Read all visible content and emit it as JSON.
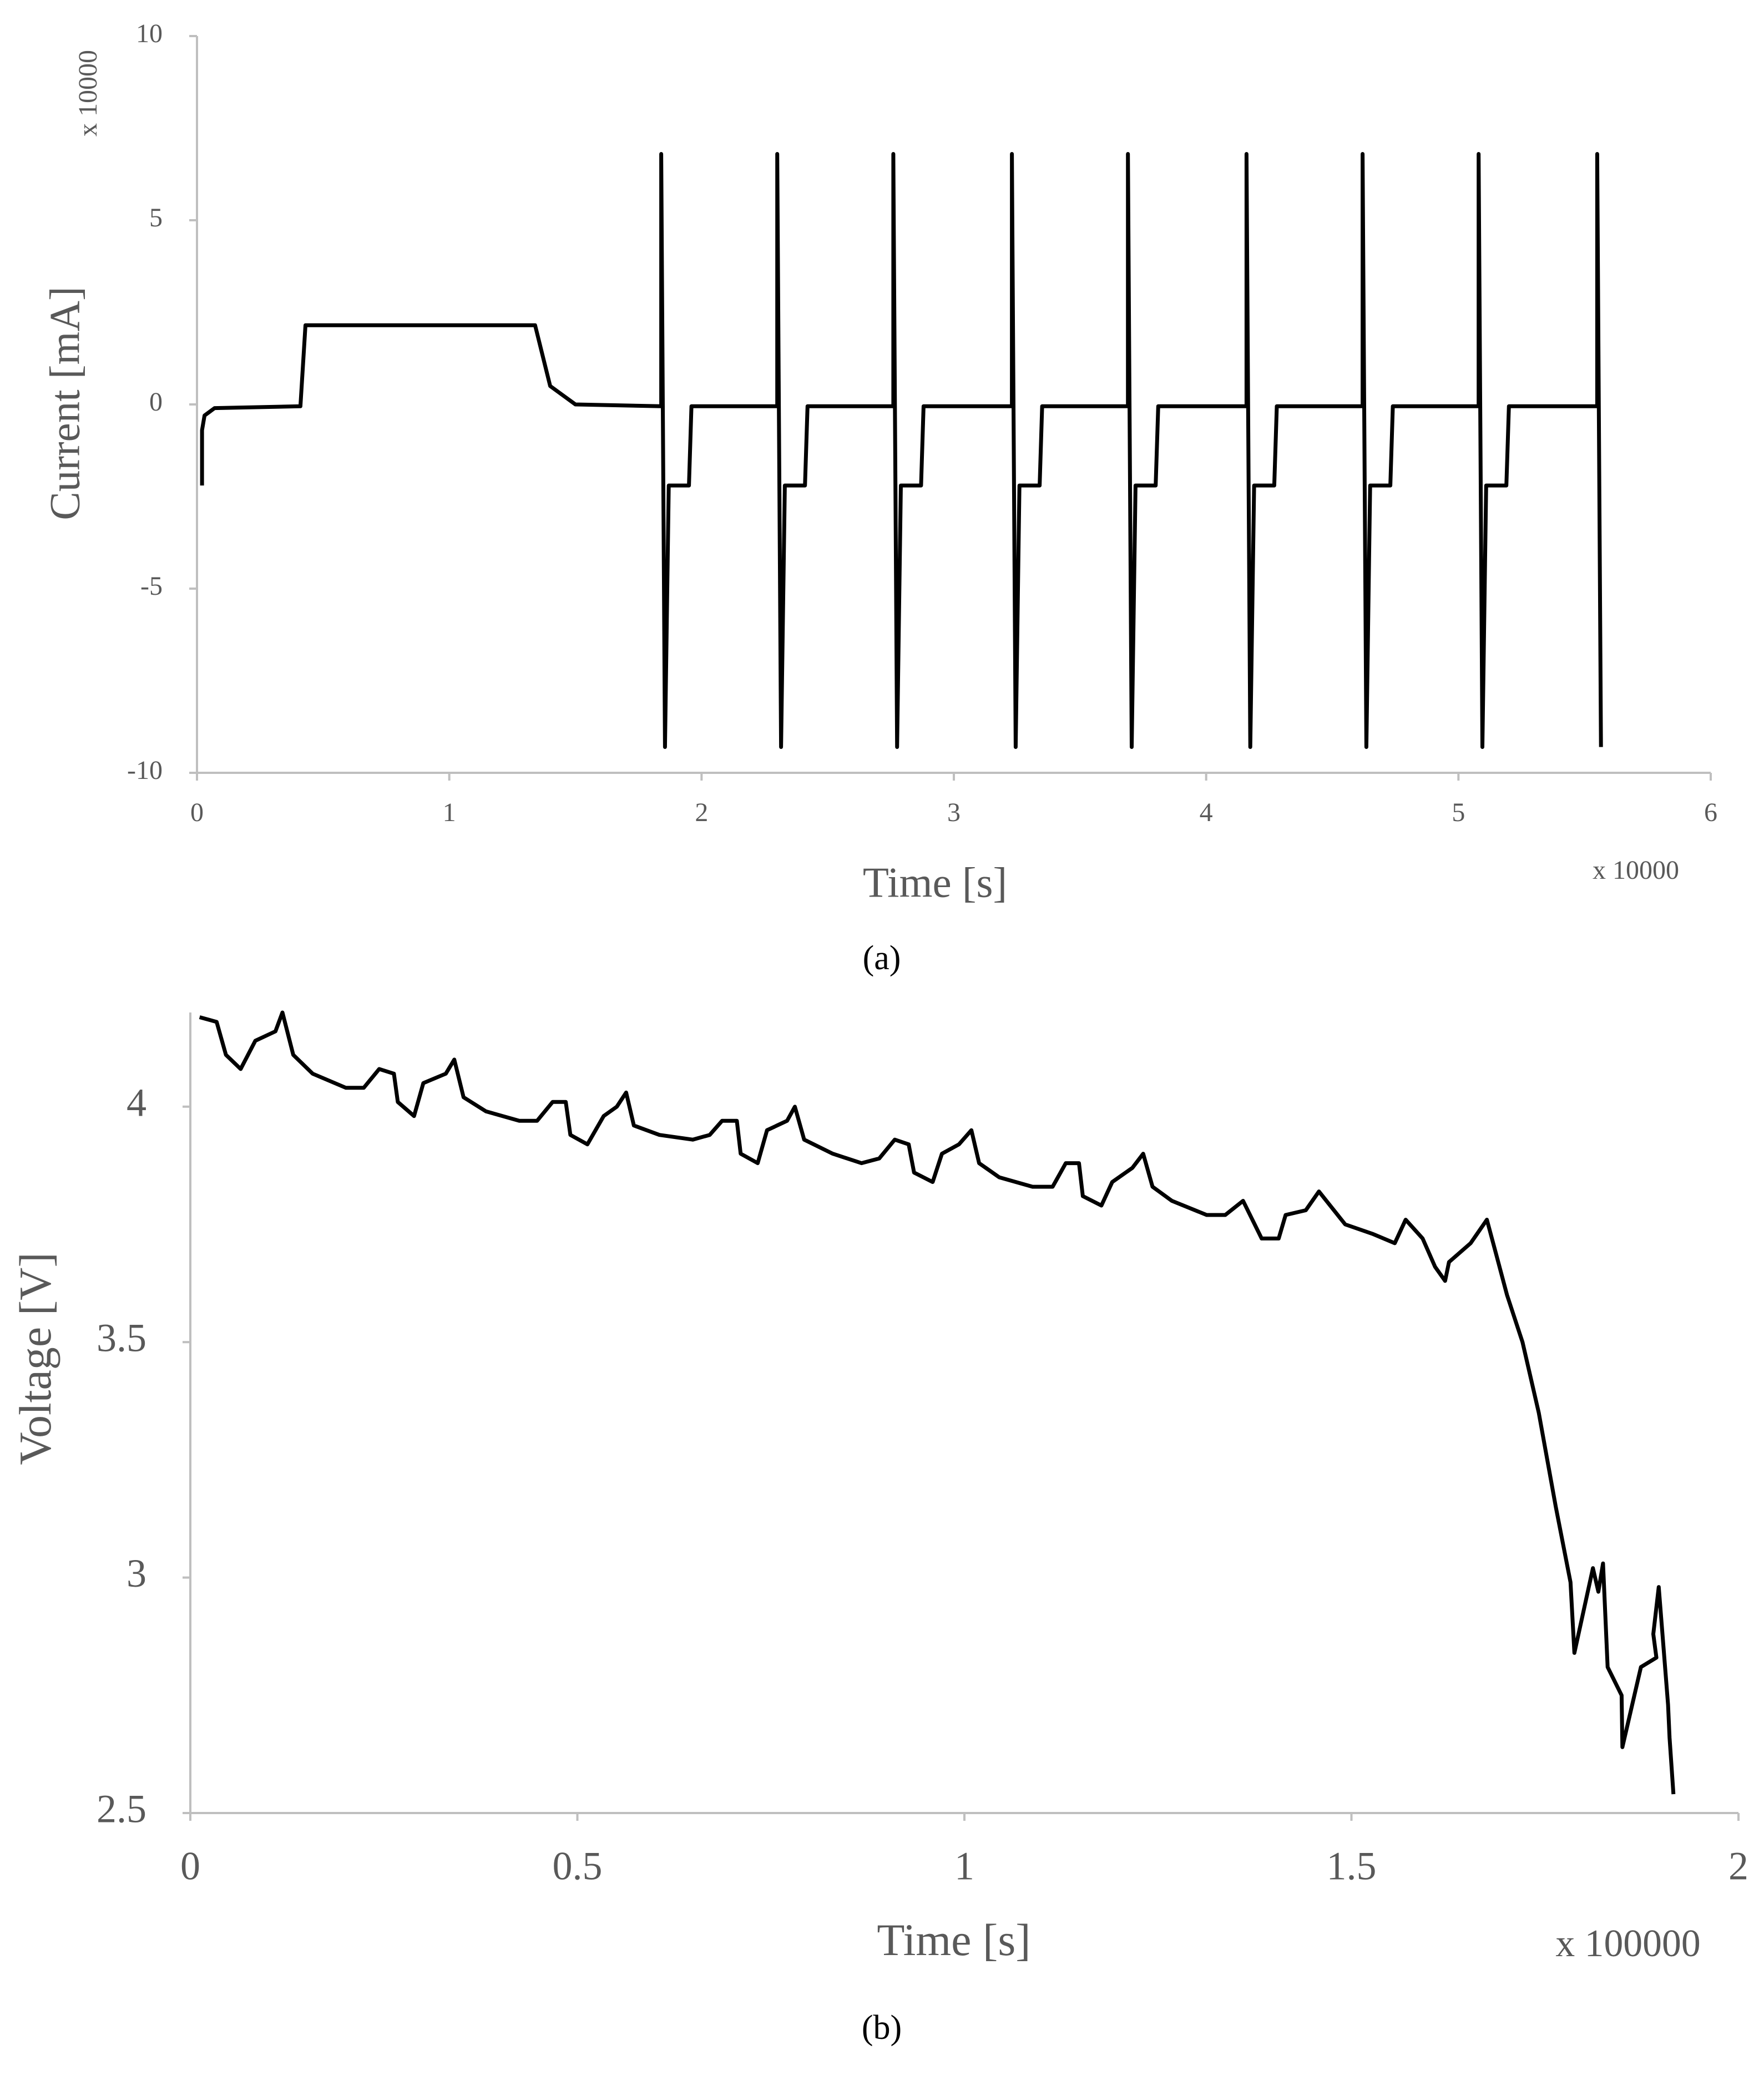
{
  "chart_data": [
    {
      "type": "line",
      "caption": "(a)",
      "x_label": "Time [s]",
      "y_label": "Current [mA]",
      "x_multiplier_label": "x 10000",
      "y_multiplier_label": "x 10000",
      "xlim": [
        0,
        6
      ],
      "xticks": [
        0,
        1,
        2,
        3,
        4,
        5,
        6
      ],
      "ylim": [
        -10,
        10
      ],
      "yticks": [
        -10,
        -5,
        0,
        5,
        10
      ],
      "grid": false,
      "series": [
        {
          "color": "#000000",
          "x": [
            0.02,
            0.02,
            0.03,
            0.07,
            0.41,
            0.43,
            1.34,
            1.4,
            1.5,
            1.84,
            1.84,
            1.855,
            1.87,
            1.95,
            1.96,
            2.3,
            2.3,
            2.315,
            2.33,
            2.41,
            2.42,
            2.76,
            2.76,
            2.775,
            2.79,
            2.87,
            2.88,
            3.23,
            3.23,
            3.245,
            3.26,
            3.34,
            3.35,
            3.69,
            3.69,
            3.705,
            3.72,
            3.8,
            3.81,
            4.16,
            4.16,
            4.175,
            4.19,
            4.27,
            4.28,
            4.62,
            4.62,
            4.635,
            4.65,
            4.73,
            4.74,
            5.08,
            5.08,
            5.095,
            5.11,
            5.19,
            5.2,
            5.55,
            5.55,
            5.565
          ],
          "values": [
            -2.2,
            -0.7,
            -0.3,
            -0.1,
            -0.05,
            2.15,
            2.15,
            0.5,
            0,
            -0.05,
            6.8,
            -9.3,
            -2.2,
            -2.2,
            -0.05,
            -0.05,
            6.8,
            -9.3,
            -2.2,
            -2.2,
            -0.05,
            -0.05,
            6.8,
            -9.3,
            -2.2,
            -2.2,
            -0.05,
            -0.05,
            6.8,
            -9.3,
            -2.2,
            -2.2,
            -0.05,
            -0.05,
            6.8,
            -9.3,
            -2.2,
            -2.2,
            -0.05,
            -0.05,
            6.8,
            -9.3,
            -2.2,
            -2.2,
            -0.05,
            -0.05,
            6.8,
            -9.3,
            -2.2,
            -2.2,
            -0.05,
            -0.05,
            6.8,
            -9.3,
            -2.2,
            -2.2,
            -0.05,
            -0.05,
            6.8,
            -9.3
          ]
        }
      ]
    },
    {
      "type": "line",
      "caption": "(b)",
      "x_label": "Time [s]",
      "y_label": "Voltage [V]",
      "x_multiplier_label": "x 100000",
      "xlim": [
        0,
        2
      ],
      "xticks": [
        0,
        0.5,
        1,
        1.5,
        2
      ],
      "ylim": [
        2.5,
        4.2
      ],
      "yticks": [
        2.5,
        3,
        3.5,
        4
      ],
      "grid": false,
      "series": [
        {
          "color": "#000000",
          "x": [
            0.012,
            0.034,
            0.046,
            0.065,
            0.084,
            0.11,
            0.119,
            0.133,
            0.158,
            0.201,
            0.224,
            0.244,
            0.263,
            0.268,
            0.289,
            0.301,
            0.33,
            0.341,
            0.353,
            0.382,
            0.425,
            0.448,
            0.468,
            0.485,
            0.491,
            0.513,
            0.534,
            0.551,
            0.563,
            0.573,
            0.606,
            0.649,
            0.671,
            0.687,
            0.706,
            0.711,
            0.733,
            0.745,
            0.771,
            0.781,
            0.793,
            0.83,
            0.867,
            0.89,
            0.91,
            0.928,
            0.935,
            0.959,
            0.971,
            0.993,
            1.009,
            1.019,
            1.045,
            1.088,
            1.114,
            1.131,
            1.148,
            1.153,
            1.177,
            1.191,
            1.217,
            1.231,
            1.243,
            1.268,
            1.313,
            1.337,
            1.36,
            1.384,
            1.406,
            1.415,
            1.441,
            1.458,
            1.492,
            1.527,
            1.556,
            1.57,
            1.592,
            1.608,
            1.621,
            1.626,
            1.654,
            1.675,
            1.688,
            1.701,
            1.721,
            1.742,
            1.764,
            1.783,
            1.788,
            1.812,
            1.819,
            1.825,
            1.831,
            1.849,
            1.85,
            1.874,
            1.894,
            1.89,
            1.897,
            1.909,
            1.911,
            1.916
          ],
          "values": [
            4.19,
            4.18,
            4.11,
            4.08,
            4.14,
            4.16,
            4.2,
            4.11,
            4.07,
            4.04,
            4.04,
            4.08,
            4.07,
            4.01,
            3.98,
            4.05,
            4.07,
            4.1,
            4.02,
            3.99,
            3.97,
            3.97,
            4.01,
            4.01,
            3.94,
            3.92,
            3.98,
            4.0,
            4.03,
            3.96,
            3.94,
            3.93,
            3.94,
            3.97,
            3.97,
            3.9,
            3.88,
            3.95,
            3.97,
            4.0,
            3.93,
            3.9,
            3.88,
            3.89,
            3.93,
            3.92,
            3.86,
            3.84,
            3.9,
            3.92,
            3.95,
            3.88,
            3.85,
            3.83,
            3.83,
            3.88,
            3.88,
            3.81,
            3.79,
            3.84,
            3.87,
            3.9,
            3.83,
            3.8,
            3.77,
            3.77,
            3.8,
            3.72,
            3.72,
            3.77,
            3.78,
            3.82,
            3.75,
            3.73,
            3.71,
            3.76,
            3.72,
            3.66,
            3.63,
            3.67,
            3.71,
            3.76,
            3.68,
            3.6,
            3.5,
            3.35,
            3.15,
            2.99,
            2.84,
            3.02,
            2.97,
            3.03,
            2.81,
            2.75,
            2.64,
            2.81,
            2.83,
            2.88,
            2.98,
            2.73,
            2.66,
            2.54
          ]
        }
      ]
    }
  ]
}
